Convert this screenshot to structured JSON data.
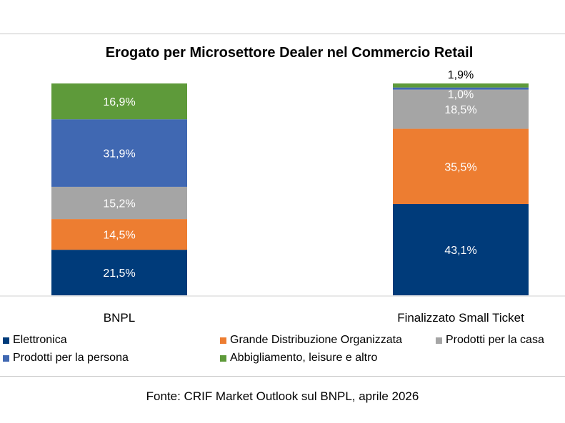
{
  "chart_data": {
    "type": "bar",
    "stacked": true,
    "title": "Erogato per Microsettore Dealer nel Commercio Retail",
    "categories": [
      "BNPL",
      "Finalizzato Small Ticket"
    ],
    "series": [
      {
        "name": "Elettronica",
        "color": "#003b7a",
        "values": [
          21.5,
          43.1
        ],
        "labels": [
          "21,5%",
          "43,1%"
        ]
      },
      {
        "name": "Grande Distribuzione Organizzata",
        "color": "#ed7d31",
        "values": [
          14.5,
          35.5
        ],
        "labels": [
          "14,5%",
          "35,5%"
        ]
      },
      {
        "name": "Prodotti per la casa",
        "color": "#a5a5a5",
        "values": [
          15.2,
          18.5
        ],
        "labels": [
          "15,2%",
          "18,5%"
        ]
      },
      {
        "name": "Prodotti per la persona",
        "color": "#4068b2",
        "values": [
          31.9,
          1.0
        ],
        "labels": [
          "31,9%",
          "1,0%"
        ]
      },
      {
        "name": "Abbigliamento, leisure e altro",
        "color": "#5e9a3a",
        "values": [
          16.9,
          1.9
        ],
        "labels": [
          "16,9%",
          "1,9%"
        ]
      }
    ],
    "ylim": [
      0,
      100
    ],
    "grid": false,
    "legend": "bottom"
  },
  "source": "Fonte: CRIF Market Outlook sul BNPL, aprile 2026"
}
